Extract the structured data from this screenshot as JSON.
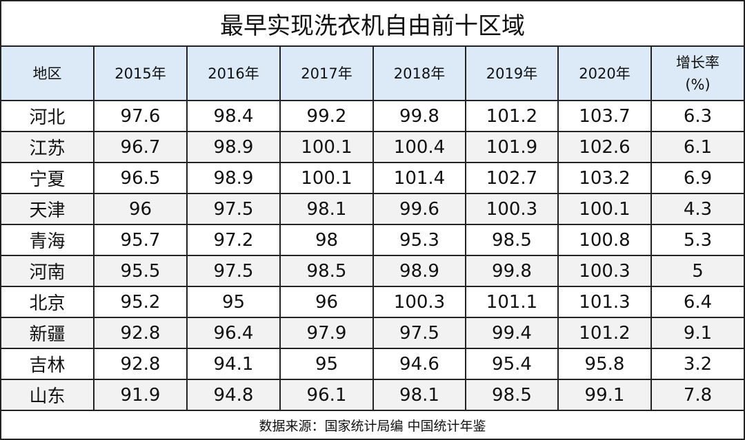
{
  "title": "最早实现洗衣机自由前十区域",
  "table": {
    "header": [
      "地区",
      "2015年",
      "2016年",
      "2017年",
      "2018年",
      "2019年",
      "2020年",
      [
        "增长率",
        "(%)"
      ]
    ],
    "rows": [
      [
        "河北",
        "97.6",
        "98.4",
        "99.2",
        "99.8",
        "101.2",
        "103.7",
        "6.3"
      ],
      [
        "江苏",
        "96.7",
        "98.9",
        "100.1",
        "100.4",
        "101.9",
        "102.6",
        "6.1"
      ],
      [
        "宁夏",
        "96.5",
        "98.9",
        "100.1",
        "101.4",
        "102.7",
        "103.2",
        "6.9"
      ],
      [
        "天津",
        "96",
        "97.5",
        "98.1",
        "99.6",
        "100.3",
        "100.1",
        "4.3"
      ],
      [
        "青海",
        "95.7",
        "97.2",
        "98",
        "95.3",
        "98.5",
        "100.8",
        "5.3"
      ],
      [
        "河南",
        "95.5",
        "97.5",
        "98.5",
        "98.9",
        "99.8",
        "100.3",
        "5"
      ],
      [
        "北京",
        "95.2",
        "95",
        "96",
        "100.3",
        "101.1",
        "101.3",
        "6.4"
      ],
      [
        "新疆",
        "92.8",
        "96.4",
        "97.9",
        "97.5",
        "99.4",
        "101.2",
        "9.1"
      ],
      [
        "吉林",
        "92.8",
        "94.1",
        "95",
        "94.6",
        "95.4",
        "95.8",
        "3.2"
      ],
      [
        "山东",
        "91.9",
        "94.8",
        "96.1",
        "98.1",
        "98.5",
        "99.1",
        "7.8"
      ]
    ]
  },
  "footer": "数据来源：国家统计局编 中国统计年鉴"
}
